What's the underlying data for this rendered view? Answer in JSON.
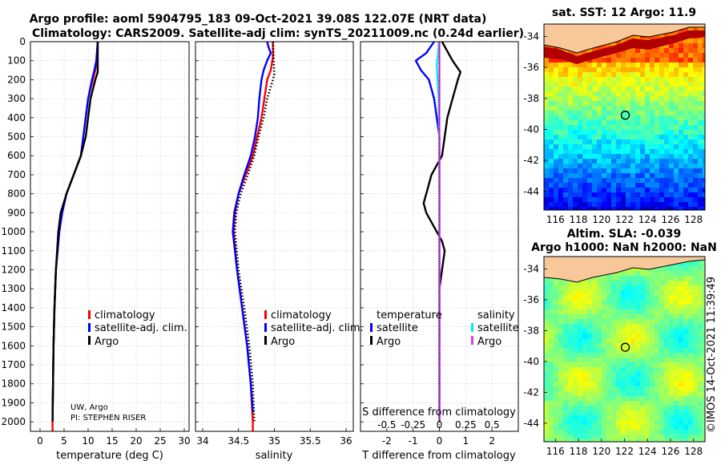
{
  "titles": {
    "line1": "Argo profile: aoml 5904795_183 09-Oct-2021 39.08S 122.07E (NRT data)",
    "line2": "Climatology: CARS2009. Satellite-adj clim: synTS_20211009.nc (0.24d earlier)",
    "sst_title": "sat. SST: 12 Argo: 11.9",
    "sla_title1": "Altim. SLA: -0.039",
    "sla_title2": "Argo h1000: NaN h2000: NaN",
    "stamp": "©IMOS 14-Oct-2021 11:39:49"
  },
  "depth_axis": {
    "ylim": [
      0,
      2050
    ],
    "ticks": [
      "0",
      "100",
      "200",
      "300",
      "400",
      "500",
      "600",
      "700",
      "800",
      "900",
      "1000",
      "1100",
      "1200",
      "1300",
      "1400",
      "1500",
      "1600",
      "1700",
      "1800",
      "1900",
      "2000"
    ]
  },
  "notes": {
    "line1": "UW, Argo",
    "line2": "PI: STEPHEN RISER"
  },
  "chart_data": [
    {
      "type": "line",
      "name": "temperature-panel",
      "xlabel": "temperature (deg C)",
      "xlim": [
        -2,
        31
      ],
      "xticks": [
        "0",
        "5",
        "10",
        "15",
        "20",
        "25",
        "30"
      ],
      "legend": [
        "climatology",
        "satellite-adj. clim.",
        "Argo"
      ],
      "series": [
        {
          "name": "climatology",
          "color": "#ff0000",
          "style": "solid",
          "depth": [
            0,
            100,
            150,
            200,
            300,
            400,
            500,
            600,
            700,
            800,
            900,
            1000,
            1200,
            1400,
            1600,
            1800,
            2000,
            2050
          ],
          "values": [
            12,
            11.8,
            11.5,
            11,
            10,
            9.5,
            9,
            8.5,
            7,
            5.5,
            4.6,
            4,
            3.3,
            3,
            2.8,
            2.7,
            2.6,
            2.6
          ]
        },
        {
          "name": "satellite-adj. clim.",
          "color": "#0000ff",
          "style": "solid",
          "depth": [
            0,
            100,
            150,
            200,
            300,
            400,
            500,
            600,
            700,
            800,
            900,
            1000,
            1200,
            1400,
            1600,
            1800,
            1950
          ],
          "values": [
            12,
            11.7,
            11.3,
            10.8,
            10,
            9.5,
            9,
            8.5,
            7,
            5.5,
            4.6,
            4,
            3.3,
            3,
            2.8,
            2.7,
            2.6
          ]
        },
        {
          "name": "Argo",
          "color": "#000000",
          "style": "solid",
          "depth": [
            0,
            100,
            160,
            200,
            300,
            400,
            500,
            600,
            700,
            800,
            900,
            1000,
            1200,
            1400,
            1600,
            1800,
            2000
          ],
          "values": [
            12,
            12,
            12,
            11.5,
            10.5,
            10,
            9.5,
            8.5,
            7,
            5.5,
            4.3,
            3.8,
            3.3,
            3,
            2.8,
            2.7,
            2.6
          ]
        }
      ]
    },
    {
      "type": "line",
      "name": "salinity-panel",
      "xlabel": "salinity",
      "xlim": [
        33.9,
        36.1
      ],
      "xticks": [
        "34",
        "34.5",
        "35",
        "35.5",
        "36"
      ],
      "legend": [
        "climatology",
        "satellite-adj. clim.",
        "Argo"
      ],
      "series": [
        {
          "name": "climatology",
          "color": "#ff0000",
          "style": "solid",
          "depth": [
            0,
            80,
            150,
            200,
            300,
            400,
            500,
            600,
            700,
            800,
            900,
            1000,
            1200,
            1400,
            1600,
            1800,
            2000,
            2050
          ],
          "values": [
            34.98,
            34.98,
            34.95,
            34.9,
            34.86,
            34.82,
            34.76,
            34.7,
            34.6,
            34.5,
            34.45,
            34.43,
            34.48,
            34.55,
            34.62,
            34.67,
            34.7,
            34.7
          ]
        },
        {
          "name": "satellite-adj. clim.",
          "color": "#0000ff",
          "style": "solid",
          "depth": [
            0,
            30,
            60,
            100,
            150,
            200,
            300,
            400,
            500,
            600,
            700,
            800,
            900,
            1000,
            1200,
            1400,
            1600,
            1800,
            1950
          ],
          "values": [
            34.9,
            34.92,
            34.95,
            34.9,
            34.85,
            34.82,
            34.79,
            34.77,
            34.73,
            34.67,
            34.58,
            34.5,
            34.44,
            34.42,
            34.48,
            34.55,
            34.62,
            34.67,
            34.7
          ]
        },
        {
          "name": "Argo",
          "color": "#000000",
          "style": "dotted",
          "depth": [
            0,
            100,
            170,
            200,
            300,
            400,
            500,
            600,
            700,
            800,
            900,
            1000,
            1200,
            1400,
            1600,
            1800,
            2000
          ],
          "values": [
            34.98,
            34.99,
            35.0,
            34.98,
            34.9,
            34.85,
            34.78,
            34.72,
            34.63,
            34.53,
            34.47,
            34.45,
            34.5,
            34.58,
            34.65,
            34.7,
            34.72
          ]
        }
      ]
    },
    {
      "type": "line",
      "name": "difference-panel",
      "xlabel": "T difference from climatology",
      "xlabel_top": "S difference from climatology",
      "xlim": [
        -3,
        3
      ],
      "xticks": [
        "-2",
        "-1",
        "0",
        "1",
        "2"
      ],
      "s_xticks": [
        "-0.5",
        "-0.25",
        "0",
        "0.25",
        "0.5"
      ],
      "legend_temperature": {
        "header": "temperature",
        "items": [
          "satellite",
          "Argo"
        ]
      },
      "legend_salinity": {
        "header": "salinity",
        "items": [
          "satellite",
          "Argo"
        ]
      },
      "series": [
        {
          "name": "T satellite",
          "color": "#0000ff",
          "style": "solid",
          "depth": [
            0,
            60,
            100,
            150,
            200,
            300,
            400,
            500,
            600,
            800,
            1000,
            1500,
            2000
          ],
          "values": [
            -0.2,
            -0.5,
            -0.9,
            -0.7,
            -0.4,
            -0.2,
            -0.1,
            0,
            0,
            0,
            0,
            0,
            0
          ]
        },
        {
          "name": "T Argo",
          "color": "#000000",
          "style": "solid",
          "depth": [
            0,
            100,
            160,
            200,
            250,
            300,
            400,
            500,
            600,
            650,
            700,
            800,
            850,
            900,
            950,
            1000,
            1050,
            1100,
            1200,
            1300,
            1500,
            2000
          ],
          "values": [
            0.1,
            0.5,
            0.8,
            0.7,
            0.6,
            0.5,
            0.3,
            0.2,
            0.1,
            -0.1,
            -0.3,
            -0.5,
            -0.6,
            -0.5,
            -0.3,
            -0.1,
            0.1,
            0.2,
            0.1,
            0,
            0,
            0
          ]
        },
        {
          "name": "S satellite",
          "color": "#00e5ff",
          "style": "solid",
          "depth": [
            0,
            60,
            120,
            200,
            300,
            500,
            800,
            1000,
            1500,
            2000
          ],
          "values": [
            -0.02,
            -0.05,
            -0.1,
            -0.07,
            -0.03,
            -0.01,
            0,
            0,
            0,
            0
          ]
        },
        {
          "name": "S Argo",
          "color": "#e040e0",
          "style": "solid",
          "depth": [
            0,
            2000
          ],
          "values": [
            0,
            0
          ]
        }
      ]
    },
    {
      "type": "heatmap",
      "name": "sst-map",
      "xticks": [
        "116",
        "118",
        "120",
        "122",
        "124",
        "126",
        "128"
      ],
      "yticks": [
        "-34",
        "-36",
        "-38",
        "-40",
        "-42",
        "-44"
      ],
      "xlim": [
        115,
        129
      ],
      "ylim": [
        -45.2,
        -33.2
      ],
      "marker": {
        "lon": 122.07,
        "lat": -39.08
      }
    },
    {
      "type": "heatmap",
      "name": "sla-map",
      "xticks": [
        "116",
        "118",
        "120",
        "122",
        "124",
        "126",
        "128"
      ],
      "yticks": [
        "-34",
        "-36",
        "-38",
        "-40",
        "-42",
        "-44"
      ],
      "xlim": [
        115,
        129
      ],
      "ylim": [
        -45.2,
        -33.2
      ],
      "marker": {
        "lon": 122.07,
        "lat": -39.08
      }
    }
  ]
}
